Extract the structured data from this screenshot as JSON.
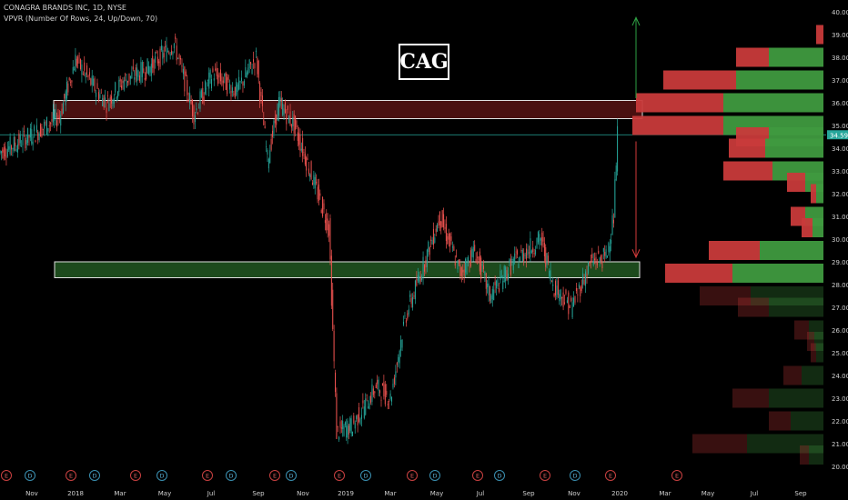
{
  "header": {
    "symbol_line": "CONAGRA BRANDS INC, 1D, NYSE",
    "indicator_line": "VPVR (Number Of Rows, 24, Up/Down, 70)"
  },
  "ticker_label": "CAG",
  "price_tag": "34.59",
  "colors": {
    "background": "#000000",
    "up": "#26a69a",
    "down": "#ef5350",
    "resistance_zone": "#4a1010",
    "support_zone": "#1d4a1d",
    "vp_up": "#3f9a3f",
    "vp_down": "#c83a3a",
    "arrow_up": "#2ea043",
    "arrow_down": "#d23a3a"
  },
  "chart_data": {
    "type": "candlestick",
    "ylim": [
      20.0,
      40.0
    ],
    "y_ticks": [
      "40.00",
      "39.00",
      "38.00",
      "37.00",
      "36.00",
      "35.00",
      "34.00",
      "33.00",
      "32.00",
      "31.00",
      "30.00",
      "29.00",
      "28.00",
      "27.00",
      "26.00",
      "25.00",
      "24.00",
      "23.00",
      "22.00",
      "21.00",
      "20.00"
    ],
    "x_ticks": [
      "Nov",
      "2018",
      "Mar",
      "May",
      "Jul",
      "Sep",
      "Nov",
      "2019",
      "Mar",
      "May",
      "Jul",
      "Sep",
      "Nov",
      "2020",
      "Mar",
      "May",
      "Jul",
      "Sep"
    ],
    "last_price": 34.59,
    "zones": [
      {
        "name": "resistance",
        "low": 35.3,
        "high": 36.1
      },
      {
        "name": "support",
        "low": 28.3,
        "high": 29.0
      }
    ],
    "price_path": [
      {
        "d": "2017-10-01",
        "p": 33.8
      },
      {
        "d": "2017-11-15",
        "p": 34.6
      },
      {
        "d": "2017-12-20",
        "p": 35.4
      },
      {
        "d": "2018-01-10",
        "p": 37.9
      },
      {
        "d": "2018-02-01",
        "p": 36.8
      },
      {
        "d": "2018-02-20",
        "p": 36.0
      },
      {
        "d": "2018-03-15",
        "p": 37.0
      },
      {
        "d": "2018-04-15",
        "p": 37.5
      },
      {
        "d": "2018-05-20",
        "p": 38.6
      },
      {
        "d": "2018-06-15",
        "p": 35.5
      },
      {
        "d": "2018-07-10",
        "p": 37.3
      },
      {
        "d": "2018-08-10",
        "p": 36.5
      },
      {
        "d": "2018-09-05",
        "p": 38.0
      },
      {
        "d": "2018-09-20",
        "p": 33.5
      },
      {
        "d": "2018-10-05",
        "p": 36.0
      },
      {
        "d": "2018-10-25",
        "p": 35.0
      },
      {
        "d": "2018-11-15",
        "p": 33.0
      },
      {
        "d": "2018-12-10",
        "p": 30.5
      },
      {
        "d": "2018-12-20",
        "p": 21.5
      },
      {
        "d": "2019-01-10",
        "p": 21.8
      },
      {
        "d": "2019-02-10",
        "p": 23.5
      },
      {
        "d": "2019-03-01",
        "p": 23.0
      },
      {
        "d": "2019-03-20",
        "p": 26.5
      },
      {
        "d": "2019-04-20",
        "p": 29.5
      },
      {
        "d": "2019-05-05",
        "p": 31.0
      },
      {
        "d": "2019-06-01",
        "p": 28.5
      },
      {
        "d": "2019-06-20",
        "p": 29.5
      },
      {
        "d": "2019-07-10",
        "p": 27.5
      },
      {
        "d": "2019-08-10",
        "p": 29.0
      },
      {
        "d": "2019-09-15",
        "p": 30.0
      },
      {
        "d": "2019-10-01",
        "p": 28.0
      },
      {
        "d": "2019-10-25",
        "p": 27.0
      },
      {
        "d": "2019-11-20",
        "p": 29.0
      },
      {
        "d": "2019-12-10",
        "p": 29.2
      },
      {
        "d": "2019-12-20",
        "p": 31.0
      },
      {
        "d": "2019-12-25",
        "p": 34.6
      }
    ],
    "volume_profile": [
      {
        "price": 39.0,
        "up": 0.0,
        "down": 0.04
      },
      {
        "price": 38.0,
        "up": 0.3,
        "down": 0.18
      },
      {
        "price": 37.0,
        "up": 0.48,
        "down": 0.4
      },
      {
        "price": 36.0,
        "up": 0.55,
        "down": 0.48
      },
      {
        "price": 35.0,
        "up": 0.55,
        "down": 0.5
      },
      {
        "price": 34.5,
        "up": 0.3,
        "down": 0.18
      },
      {
        "price": 34.0,
        "up": 0.32,
        "down": 0.2
      },
      {
        "price": 33.0,
        "up": 0.28,
        "down": 0.27
      },
      {
        "price": 32.5,
        "up": 0.1,
        "down": 0.1
      },
      {
        "price": 32.0,
        "up": 0.04,
        "down": 0.03
      },
      {
        "price": 31.0,
        "up": 0.1,
        "down": 0.08
      },
      {
        "price": 30.5,
        "up": 0.06,
        "down": 0.06
      },
      {
        "price": 29.5,
        "up": 0.35,
        "down": 0.28
      },
      {
        "price": 28.5,
        "up": 0.5,
        "down": 0.37
      },
      {
        "price": 27.5,
        "up": 0.4,
        "down": 0.28
      },
      {
        "price": 27.0,
        "up": 0.3,
        "down": 0.17
      },
      {
        "price": 26.0,
        "up": 0.08,
        "down": 0.08
      },
      {
        "price": 25.5,
        "up": 0.05,
        "down": 0.04
      },
      {
        "price": 25.0,
        "up": 0.04,
        "down": 0.03
      },
      {
        "price": 24.0,
        "up": 0.12,
        "down": 0.1
      },
      {
        "price": 23.0,
        "up": 0.3,
        "down": 0.2
      },
      {
        "price": 22.0,
        "up": 0.18,
        "down": 0.12
      },
      {
        "price": 21.0,
        "up": 0.42,
        "down": 0.3
      },
      {
        "price": 20.5,
        "up": 0.08,
        "down": 0.05
      }
    ],
    "event_markers": [
      "E",
      "D",
      "E",
      "D",
      "E",
      "D",
      "E",
      "D",
      "E",
      "D",
      "E",
      "D",
      "E",
      "D",
      "E",
      "D",
      "E",
      "D",
      "E",
      "E"
    ]
  }
}
